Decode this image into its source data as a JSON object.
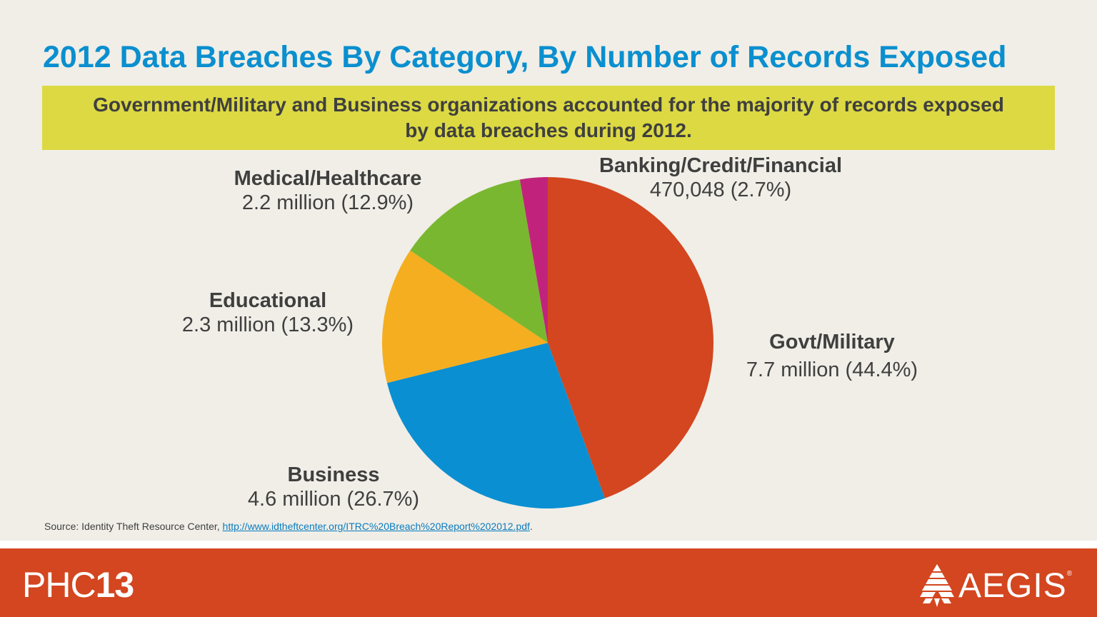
{
  "slide": {
    "title": "2012 Data Breaches By Category, By Number of Records Exposed",
    "subtitle": "Government/Military and Business organizations accounted for the majority of records exposed by data breaches during 2012.",
    "source_prefix": "Source: Identity Theft Resource Center, ",
    "source_link": "http://www.idtheftcenter.org/ITRC%20Breach%20Report%202012.pdf",
    "source_suffix": "."
  },
  "footer": {
    "left_brand_light": "PHC",
    "left_brand_bold": "13",
    "right_brand": "AEGIS",
    "right_brand_mark": "®",
    "right_logo_icon": "aegis-pyramid-icon"
  },
  "chart_data": {
    "type": "pie",
    "start": "12 o'clock, clockwise",
    "slices": [
      {
        "name": "Govt/Military",
        "label": "7.7 million (44.4%)",
        "value": 44.4,
        "color": "#d3461f"
      },
      {
        "name": "Business",
        "label": "4.6 million (26.7%)",
        "value": 26.7,
        "color": "#0a8fd2"
      },
      {
        "name": "Educational",
        "label": "2.3 million (13.3%)",
        "value": 13.3,
        "color": "#f5ae1f"
      },
      {
        "name": "Medical/Healthcare",
        "label": "2.2 million (12.9%)",
        "value": 12.9,
        "color": "#7ab730"
      },
      {
        "name": "Banking/Credit/Financial",
        "label": "470,048 (2.7%)",
        "value": 2.7,
        "color": "#c1237c"
      }
    ]
  }
}
